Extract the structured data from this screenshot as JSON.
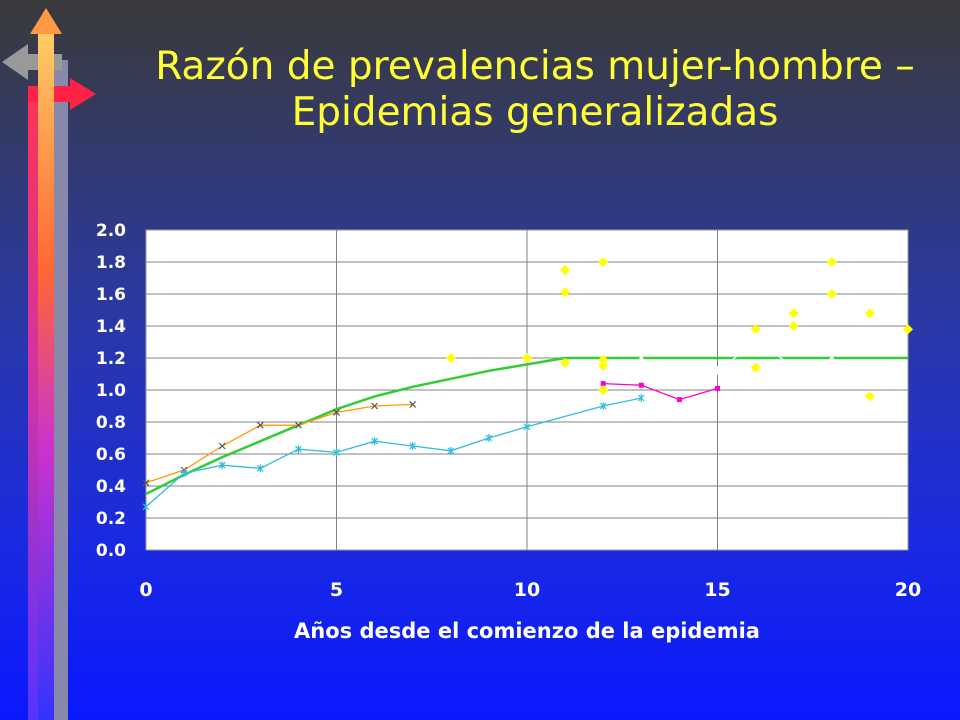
{
  "slide": {
    "title_line1": "Razón de prevalencias mujer-hombre –",
    "title_line2": "Epidemias generalizadas"
  },
  "colors": {
    "title": "#ffff33",
    "plot_bg": "#ffffff",
    "grid": "#808080",
    "axis_text": "#ffffff",
    "trend": "#33cc33",
    "series_orange": "#ff9900",
    "series_cyan": "#33bbdd",
    "series_magenta": "#ff00cc",
    "series_white": "#ffffff",
    "scatter_yellow": "#ffff00"
  },
  "chart_data": {
    "type": "line",
    "title": "",
    "xlabel": "Años desde el comienzo de la epidemia",
    "ylabel": "",
    "xlim": [
      0,
      20
    ],
    "ylim": [
      0,
      2.0
    ],
    "x_ticks": [
      "0",
      "5",
      "10",
      "15",
      "20"
    ],
    "y_ticks": [
      "0.0",
      "0.2",
      "0.4",
      "0.6",
      "0.8",
      "1.0",
      "1.2",
      "1.4",
      "1.6",
      "1.8",
      "2.0"
    ],
    "grid": true,
    "legend": "none",
    "series": [
      {
        "key": "trend",
        "type": "line",
        "color": "#33cc33",
        "x": [
          0,
          1,
          2,
          3,
          4,
          5,
          6,
          7,
          8,
          9,
          10,
          11,
          12,
          13,
          14,
          15,
          16,
          17,
          18,
          19,
          20
        ],
        "values": [
          0.35,
          0.47,
          0.58,
          0.68,
          0.78,
          0.88,
          0.96,
          1.02,
          1.07,
          1.12,
          1.16,
          1.2,
          1.2,
          1.2,
          1.2,
          1.2,
          1.2,
          1.2,
          1.2,
          1.2,
          1.2
        ]
      },
      {
        "key": "orange",
        "type": "line",
        "marker": "x",
        "color": "#ff9900",
        "x": [
          0,
          1,
          2,
          3,
          4,
          5,
          6,
          7
        ],
        "values": [
          0.42,
          0.5,
          0.65,
          0.78,
          0.78,
          0.86,
          0.9,
          0.91
        ]
      },
      {
        "key": "cyan",
        "type": "line",
        "marker": "star",
        "color": "#33bbdd",
        "x": [
          0,
          1,
          2,
          3,
          4,
          5,
          6,
          7,
          8,
          9,
          10,
          12,
          13
        ],
        "values": [
          0.27,
          0.48,
          0.53,
          0.51,
          0.63,
          0.61,
          0.68,
          0.65,
          0.62,
          0.7,
          0.77,
          0.9,
          0.95
        ]
      },
      {
        "key": "magenta",
        "type": "line",
        "marker": "square",
        "color": "#ff00cc",
        "x": [
          12,
          13,
          14,
          15
        ],
        "values": [
          1.04,
          1.03,
          0.94,
          1.01
        ]
      },
      {
        "key": "white",
        "type": "line",
        "marker": "triangle",
        "color": "#ffffff",
        "x": [
          11,
          12,
          13,
          14,
          15,
          16,
          17,
          18
        ],
        "values": [
          1.16,
          1.11,
          1.19,
          1.14,
          1.12,
          1.3,
          1.15,
          1.19
        ]
      },
      {
        "key": "yellow",
        "type": "scatter",
        "marker": "diamond",
        "color": "#ffff00",
        "points": [
          [
            8,
            1.2
          ],
          [
            10,
            1.2
          ],
          [
            11,
            1.75
          ],
          [
            11,
            1.61
          ],
          [
            11,
            1.17
          ],
          [
            12,
            1.8
          ],
          [
            12,
            1.19
          ],
          [
            12,
            1.15
          ],
          [
            12,
            1.0
          ],
          [
            16,
            1.38
          ],
          [
            16,
            1.14
          ],
          [
            17,
            1.48
          ],
          [
            17,
            1.4
          ],
          [
            18,
            1.8
          ],
          [
            18,
            1.6
          ],
          [
            19,
            1.48
          ],
          [
            19,
            0.96
          ],
          [
            20,
            1.38
          ]
        ]
      }
    ]
  }
}
